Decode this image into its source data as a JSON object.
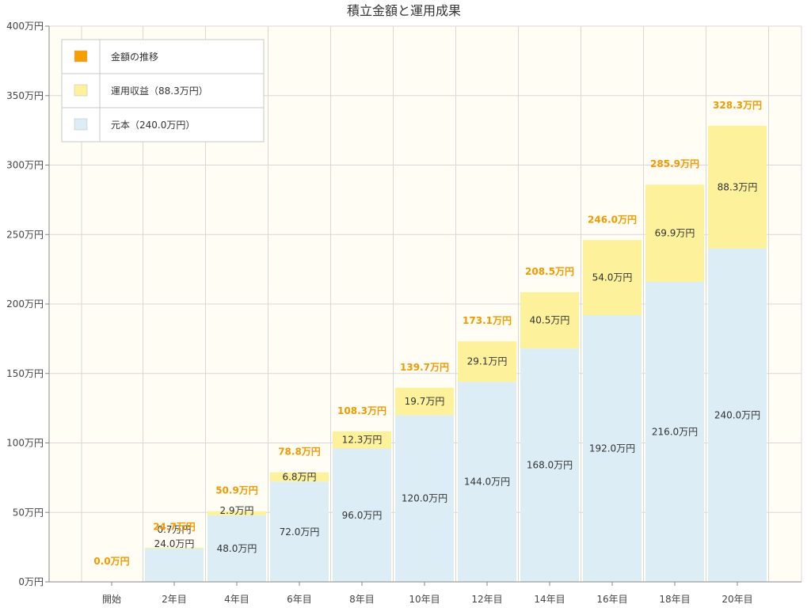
{
  "chart_data": {
    "type": "bar",
    "stacked": true,
    "title": "積立金額と運用成果",
    "categories": [
      "開始",
      "2年目",
      "4年目",
      "6年目",
      "8年目",
      "10年目",
      "12年目",
      "14年目",
      "16年目",
      "18年目",
      "20年目"
    ],
    "series": [
      {
        "name": "元本（240.0万円）",
        "color": "#dcedf5",
        "values": [
          0,
          24.0,
          48.0,
          72.0,
          96.0,
          120.0,
          144.0,
          168.0,
          192.0,
          216.0,
          240.0
        ],
        "labels": [
          "",
          "24.0万円",
          "48.0万円",
          "72.0万円",
          "96.0万円",
          "120.0万円",
          "144.0万円",
          "168.0万円",
          "192.0万円",
          "216.0万円",
          "240.0万円"
        ]
      },
      {
        "name": "運用収益（88.3万円）",
        "color": "#fdf19c",
        "values": [
          0,
          0.7,
          2.9,
          6.8,
          12.3,
          19.7,
          29.1,
          40.5,
          54.0,
          69.9,
          88.3
        ],
        "labels": [
          "",
          "0.7万円",
          "2.9万円",
          "6.8万円",
          "12.3万円",
          "19.7万円",
          "29.1万円",
          "40.5万円",
          "54.0万円",
          "69.9万円",
          "88.3万円"
        ]
      }
    ],
    "totals": {
      "name": "金額の推移",
      "color": "#f5a000",
      "values": [
        0.0,
        24.7,
        50.9,
        78.8,
        108.3,
        139.7,
        173.1,
        208.5,
        246.0,
        285.9,
        328.3
      ],
      "labels": [
        "0.0万円",
        "24.7万円",
        "50.9万円",
        "78.8万円",
        "108.3万円",
        "139.7万円",
        "173.1万円",
        "208.5万円",
        "246.0万円",
        "285.9万円",
        "328.3万円"
      ]
    },
    "ylim": [
      0,
      400
    ],
    "yticks": [
      0,
      50,
      100,
      150,
      200,
      250,
      300,
      350,
      400
    ],
    "ytick_labels": [
      "0万円",
      "50万円",
      "100万円",
      "150万円",
      "200万円",
      "250万円",
      "300万円",
      "350万円",
      "400万円"
    ],
    "grid": true,
    "legend_position": "top-left",
    "colors": {
      "plot_bg": "#fffdf4",
      "grid": "#d8d8d8",
      "axis": "#888888"
    }
  }
}
